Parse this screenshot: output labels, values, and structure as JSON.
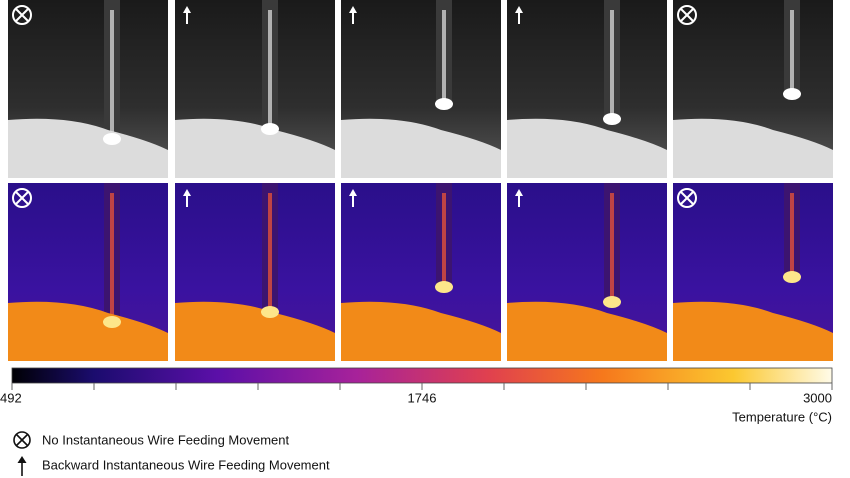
{
  "colorbar": {
    "label": "Temperature (°C)",
    "lim": [
      492,
      3000
    ],
    "ticks": [
      492,
      1746,
      3000
    ],
    "minor_ticks": [
      742.8,
      993.6,
      1244.4,
      1495.2,
      1996.8,
      2247.6,
      2498.4,
      2749.2
    ]
  },
  "legend": [
    {
      "label": "No Instantaneous Wire Feeding Movement"
    },
    {
      "label": "Backward Instantaneous Wire Feeding Movement"
    }
  ]
}
